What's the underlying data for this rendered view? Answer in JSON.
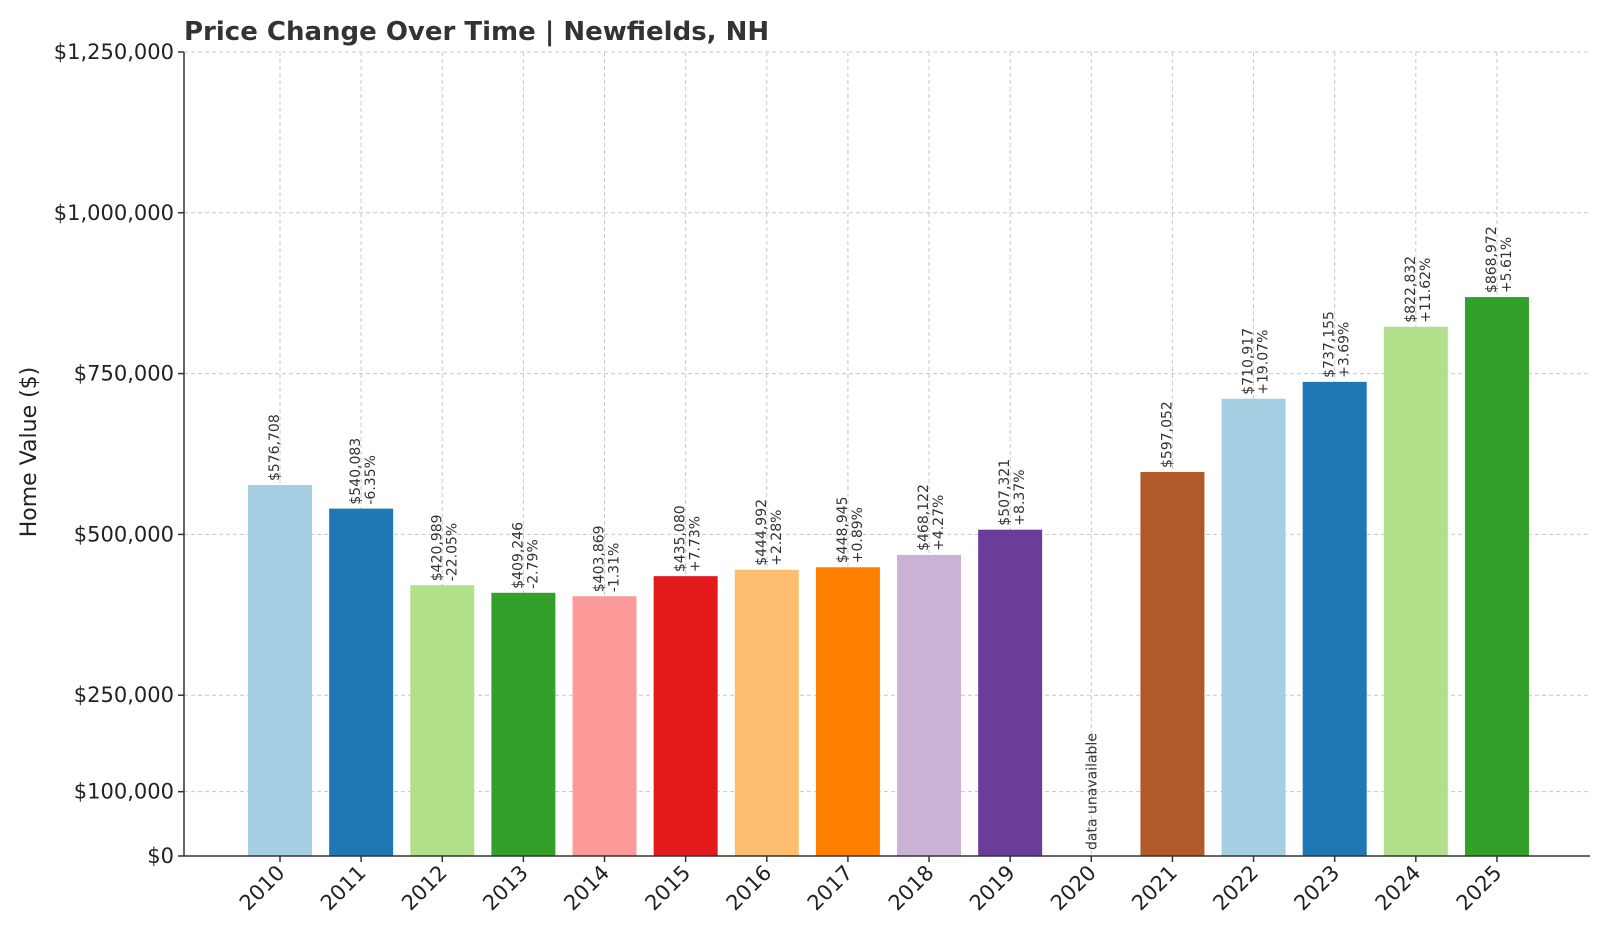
{
  "chart_data": {
    "type": "bar",
    "title": "Price Change Over Time | Newfields, NH",
    "xlabel": "",
    "ylabel": "Home Value ($)",
    "ylim": [
      0,
      1250000
    ],
    "grid": true,
    "yticks": [
      {
        "value": 0,
        "label": "$0"
      },
      {
        "value": 100000,
        "label": "$100,000"
      },
      {
        "value": 250000,
        "label": "$250,000"
      },
      {
        "value": 500000,
        "label": "$500,000"
      },
      {
        "value": 750000,
        "label": "$750,000"
      },
      {
        "value": 1000000,
        "label": "$1,000,000"
      },
      {
        "value": 1250000,
        "label": "$1,250,000"
      }
    ],
    "categories": [
      "2010",
      "2011",
      "2012",
      "2013",
      "2014",
      "2015",
      "2016",
      "2017",
      "2018",
      "2019",
      "2020",
      "2021",
      "2022",
      "2023",
      "2024",
      "2025"
    ],
    "values": [
      576708,
      540083,
      420989,
      409246,
      403869,
      435080,
      444992,
      448945,
      468122,
      507321,
      null,
      597052,
      710917,
      737155,
      822832,
      868972
    ],
    "value_labels": [
      "$576,708",
      "$540,083",
      "$420,989",
      "$409,246",
      "$403,869",
      "$435,080",
      "$444,992",
      "$448,945",
      "$468,122",
      "$507,321",
      "",
      "$597,052",
      "$710,917",
      "$737,155",
      "$822,832",
      "$868,972"
    ],
    "change_labels": [
      "",
      "-6.35%",
      "-22.05%",
      "-2.79%",
      "-1.31%",
      "+7.73%",
      "+2.28%",
      "+0.89%",
      "+4.27%",
      "+8.37%",
      "",
      "",
      "+19.07%",
      "+3.69%",
      "+11.62%",
      "+5.61%"
    ],
    "missing_label": "data unavailable",
    "colors": [
      "#a6cee3",
      "#1f78b4",
      "#b2df8a",
      "#33a02c",
      "#fb9a99",
      "#e31a1c",
      "#fdbf6f",
      "#ff7f00",
      "#cab2d6",
      "#6a3d9a",
      "#ffff99",
      "#b15928",
      "#a6cee3",
      "#1f78b4",
      "#b2df8a",
      "#33a02c"
    ]
  }
}
